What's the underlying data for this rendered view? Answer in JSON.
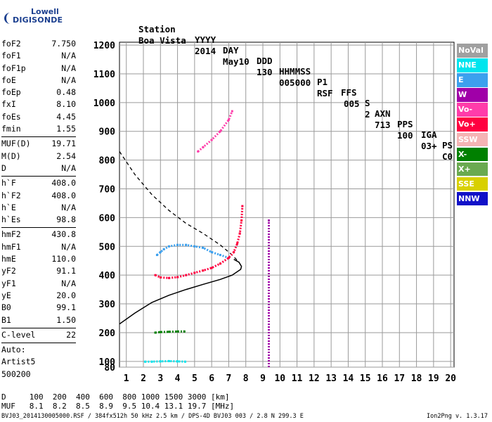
{
  "logo": {
    "line1": "Lowell",
    "line2": "DIGISONDE"
  },
  "header": {
    "labels": [
      "Station",
      "YYYY",
      "DAY",
      "DDD",
      "HHMMSS",
      "P1",
      "FFS",
      "S",
      "AXN",
      "PPS",
      "IGA",
      "PS"
    ],
    "values": [
      "Boa Vista",
      "2014",
      "May10",
      "130",
      "005000",
      "RSF",
      "005",
      "2",
      "713",
      "100",
      "03+",
      "C0"
    ]
  },
  "params": [
    {
      "type": "row",
      "label": "foF2",
      "value": "7.750"
    },
    {
      "type": "row",
      "label": "foF1",
      "value": "N/A"
    },
    {
      "type": "row",
      "label": "foF1p",
      "value": "N/A"
    },
    {
      "type": "row",
      "label": "foE",
      "value": "N/A"
    },
    {
      "type": "row",
      "label": "foEp",
      "value": "0.48"
    },
    {
      "type": "row",
      "label": "fxI",
      "value": "8.10"
    },
    {
      "type": "row",
      "label": "foEs",
      "value": "4.45"
    },
    {
      "type": "row",
      "label": "fmin",
      "value": "1.55"
    },
    {
      "type": "sep"
    },
    {
      "type": "row",
      "label": "MUF(D)",
      "value": "19.71"
    },
    {
      "type": "row",
      "label": "M(D)",
      "value": "2.54"
    },
    {
      "type": "row",
      "label": "D",
      "value": "N/A"
    },
    {
      "type": "sep"
    },
    {
      "type": "row",
      "label": "h`F",
      "value": "408.0"
    },
    {
      "type": "row",
      "label": "h`F2",
      "value": "408.0"
    },
    {
      "type": "row",
      "label": "h`E",
      "value": "N/A"
    },
    {
      "type": "row",
      "label": "h`Es",
      "value": "98.8"
    },
    {
      "type": "sep"
    },
    {
      "type": "row",
      "label": "hmF2",
      "value": "430.8"
    },
    {
      "type": "row",
      "label": "hmF1",
      "value": "N/A"
    },
    {
      "type": "row",
      "label": "hmE",
      "value": "110.0"
    },
    {
      "type": "row",
      "label": "yF2",
      "value": "91.1"
    },
    {
      "type": "row",
      "label": "yF1",
      "value": "N/A"
    },
    {
      "type": "row",
      "label": "yE",
      "value": "20.0"
    },
    {
      "type": "row",
      "label": "B0",
      "value": "99.1"
    },
    {
      "type": "row",
      "label": "B1",
      "value": "1.50"
    },
    {
      "type": "sep"
    },
    {
      "type": "row",
      "label": "C-level",
      "value": "22"
    },
    {
      "type": "sep"
    },
    {
      "type": "text",
      "label": "Auto:"
    },
    {
      "type": "text",
      "label": "Artist5"
    },
    {
      "type": "text",
      "label": "500200"
    }
  ],
  "legend": [
    {
      "label": "NoVal",
      "color": "#a0a0a0"
    },
    {
      "label": "NNE",
      "color": "#00e5ee"
    },
    {
      "label": "E",
      "color": "#3ca0ee"
    },
    {
      "label": "W",
      "color": "#a000a8"
    },
    {
      "label": "Vo-",
      "color": "#ff3caa"
    },
    {
      "label": "Vo+",
      "color": "#ff0040"
    },
    {
      "label": "SSW",
      "color": "#f5b4b4"
    },
    {
      "label": "X-",
      "color": "#008000"
    },
    {
      "label": "X+",
      "color": "#6aaa50"
    },
    {
      "label": "SSE",
      "color": "#d8d000"
    },
    {
      "label": "NNW",
      "color": "#1010c8"
    }
  ],
  "muf_table": {
    "d_label": "D",
    "d_values": "100  200  400  600  800 1000 1500 3000 [km]",
    "muf_label": "MUF",
    "muf_values": "8.1  8.2  8.5  8.9  9.5 10.4 13.1 19.7 [MHz]"
  },
  "footer": {
    "left": "BVJ03_2014130005000.RSF / 384fx512h 50 kHz 2.5 km / DPS-4D BVJ03 003 / 2.8 N 299.3 E",
    "right": "Ion2Png v. 1.3.17"
  },
  "chart_data": {
    "type": "scatter",
    "title": "",
    "xlabel": "",
    "ylabel": "",
    "xlim": [
      0.6,
      20.2
    ],
    "ylim": [
      80,
      1210
    ],
    "xticks": [
      1,
      2,
      3,
      4,
      5,
      6,
      7,
      8,
      9,
      10,
      11,
      12,
      13,
      14,
      15,
      16,
      17,
      18,
      19,
      20
    ],
    "yticks": [
      80,
      100,
      200,
      300,
      400,
      500,
      600,
      700,
      800,
      900,
      1000,
      1100,
      1200
    ],
    "grid": true,
    "traces": [
      {
        "name": "F2 trace (E)",
        "color": "#3ca0ee",
        "x": [
          2.8,
          3.0,
          3.2,
          3.5,
          4.0,
          4.5,
          5.0,
          5.5,
          6.0,
          6.5,
          7.0
        ],
        "y": [
          470,
          480,
          490,
          500,
          505,
          505,
          500,
          495,
          480,
          470,
          460
        ]
      },
      {
        "name": "F2 trace (Vo+)",
        "color": "#ff0040",
        "x": [
          2.7,
          3.0,
          3.5,
          4.0,
          4.5,
          5.0,
          5.5,
          6.0,
          6.5,
          7.0,
          7.3,
          7.5,
          7.65,
          7.75,
          7.8
        ],
        "y": [
          400,
          392,
          390,
          393,
          400,
          408,
          416,
          425,
          440,
          460,
          480,
          510,
          545,
          590,
          640
        ]
      },
      {
        "name": "F2 second hop",
        "color": "#ff3caa",
        "x": [
          5.2,
          5.5,
          6.0,
          6.5,
          7.0,
          7.2
        ],
        "y": [
          830,
          845,
          870,
          900,
          940,
          970
        ]
      },
      {
        "name": "Es trace",
        "color": "#00e5ee",
        "x": [
          2.1,
          2.5,
          3.0,
          3.5,
          4.0,
          4.45
        ],
        "y": [
          99,
          99,
          100,
          101,
          100,
          99
        ]
      },
      {
        "name": "Es second hop",
        "color": "#008000",
        "x": [
          2.7,
          3.0,
          3.5,
          4.0,
          4.4
        ],
        "y": [
          200,
          202,
          203,
          204,
          204
        ]
      },
      {
        "name": "Interference line",
        "color": "#a000a8",
        "x": [
          9.35,
          9.35
        ],
        "y": [
          80,
          590
        ]
      }
    ],
    "profile_solid": {
      "x": [
        0.6,
        1.5,
        2.5,
        3.5,
        4.5,
        5.5,
        6.5,
        7.2,
        7.7,
        7.75,
        7.6,
        7.3
      ],
      "y": [
        230,
        268,
        305,
        330,
        350,
        368,
        385,
        400,
        420,
        430,
        445,
        455
      ]
    },
    "profile_dashed": {
      "x": [
        0.6,
        1.5,
        2.5,
        3.5,
        4.5,
        5.5,
        6.5,
        7.2,
        7.6,
        7.75
      ],
      "y": [
        830,
        750,
        680,
        625,
        580,
        545,
        505,
        470,
        445,
        430
      ]
    }
  }
}
